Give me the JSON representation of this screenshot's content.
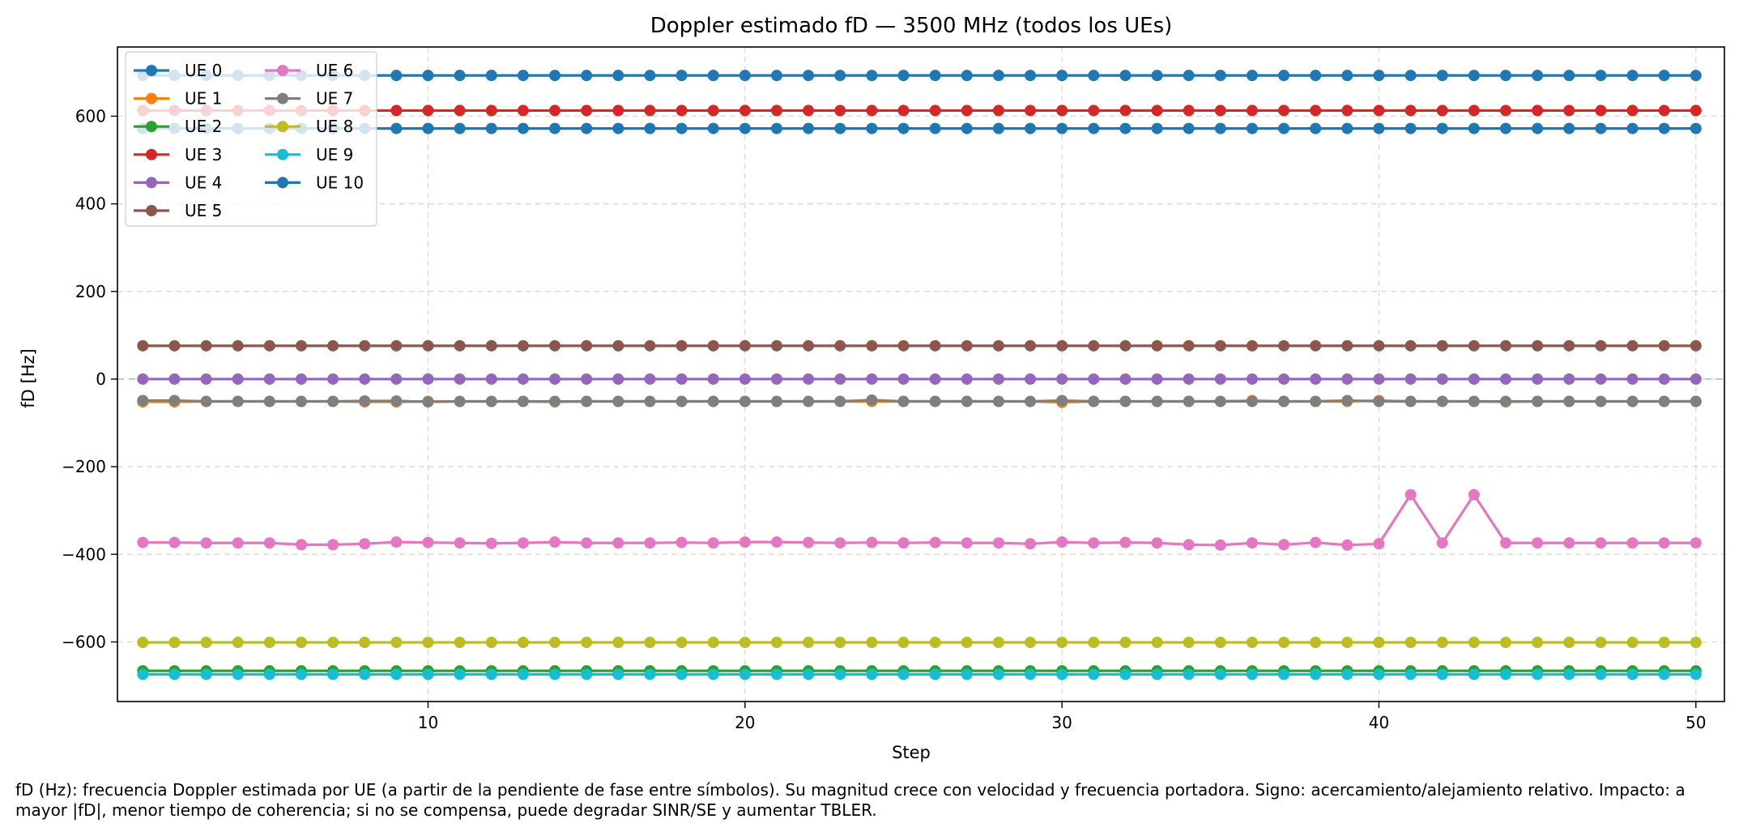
{
  "chart_data": {
    "type": "line",
    "title": "Doppler estimado fD — 3500 MHz (todos los UEs)",
    "xlabel": "Step",
    "ylabel": "fD [Hz]",
    "xlim": [
      0.2,
      50.9
    ],
    "ylim": [
      -736,
      758
    ],
    "xticks": [
      10,
      20,
      30,
      40,
      50
    ],
    "yticks": [
      -600,
      -400,
      -200,
      0,
      200,
      400,
      600
    ],
    "ytick_labels": [
      "−600",
      "−400",
      "−200",
      "0",
      "200",
      "400",
      "600"
    ],
    "grid": true,
    "legend_position": "top-left",
    "zero_reference_line": {
      "y": 0,
      "style": "dashed",
      "color": "#8ab6d6"
    },
    "x": [
      1,
      2,
      3,
      4,
      5,
      6,
      7,
      8,
      9,
      10,
      11,
      12,
      13,
      14,
      15,
      16,
      17,
      18,
      19,
      20,
      21,
      22,
      23,
      24,
      25,
      26,
      27,
      28,
      29,
      30,
      31,
      32,
      33,
      34,
      35,
      36,
      37,
      38,
      39,
      40,
      41,
      42,
      43,
      44,
      45,
      46,
      47,
      48,
      49,
      50
    ],
    "series": [
      {
        "name": "UE 0",
        "color": "#1f77b4",
        "values": [
          572,
          572,
          572,
          572,
          572,
          572,
          572,
          572,
          572,
          572,
          572,
          572,
          572,
          572,
          572,
          572,
          572,
          572,
          572,
          572,
          572,
          572,
          572,
          572,
          572,
          572,
          572,
          572,
          572,
          572,
          572,
          572,
          572,
          572,
          572,
          572,
          572,
          572,
          572,
          572,
          572,
          572,
          572,
          572,
          572,
          572,
          572,
          572,
          572,
          572
        ]
      },
      {
        "name": "UE 1",
        "color": "#ff7f0e",
        "values": [
          -52,
          -52,
          -51,
          -51,
          -51,
          -51,
          -51,
          -52,
          -52,
          -51,
          -51,
          -51,
          -51,
          -52,
          -51,
          -51,
          -51,
          -51,
          -51,
          -51,
          -51,
          -51,
          -51,
          -51,
          -51,
          -51,
          -51,
          -51,
          -51,
          -53,
          -51,
          -51,
          -51,
          -51,
          -51,
          -49,
          -51,
          -51,
          -51,
          -49,
          -51,
          -51,
          -51,
          -52,
          -51,
          -51,
          -51,
          -51,
          -51,
          -51
        ]
      },
      {
        "name": "UE 2",
        "color": "#2ca02c",
        "values": [
          -666,
          -666,
          -666,
          -666,
          -666,
          -666,
          -666,
          -666,
          -666,
          -666,
          -666,
          -666,
          -666,
          -666,
          -666,
          -666,
          -666,
          -666,
          -666,
          -666,
          -666,
          -666,
          -666,
          -666,
          -666,
          -666,
          -666,
          -666,
          -666,
          -666,
          -666,
          -666,
          -666,
          -666,
          -666,
          -666,
          -666,
          -666,
          -666,
          -666,
          -666,
          -666,
          -666,
          -666,
          -666,
          -666,
          -666,
          -666,
          -666,
          -666
        ]
      },
      {
        "name": "UE 3",
        "color": "#d62728",
        "values": [
          613,
          613,
          613,
          613,
          613,
          613,
          613,
          613,
          613,
          613,
          613,
          613,
          613,
          613,
          613,
          613,
          613,
          613,
          613,
          613,
          613,
          613,
          613,
          613,
          613,
          613,
          613,
          613,
          613,
          613,
          613,
          613,
          613,
          613,
          613,
          613,
          613,
          613,
          613,
          613,
          613,
          613,
          613,
          613,
          613,
          613,
          613,
          613,
          613,
          613
        ]
      },
      {
        "name": "UE 4",
        "color": "#9467bd",
        "values": [
          0,
          0,
          0,
          0,
          0,
          0,
          0,
          0,
          0,
          0,
          0,
          0,
          0,
          0,
          0,
          0,
          0,
          0,
          0,
          0,
          0,
          0,
          0,
          0,
          0,
          0,
          0,
          0,
          0,
          0,
          0,
          0,
          0,
          0,
          0,
          0,
          0,
          0,
          0,
          0,
          0,
          0,
          0,
          0,
          0,
          0,
          0,
          0,
          0,
          0
        ]
      },
      {
        "name": "UE 5",
        "color": "#8c564b",
        "values": [
          76,
          76,
          76,
          76,
          76,
          76,
          76,
          76,
          76,
          76,
          76,
          76,
          76,
          76,
          76,
          76,
          76,
          76,
          76,
          76,
          76,
          76,
          76,
          76,
          76,
          76,
          76,
          76,
          76,
          76,
          76,
          76,
          76,
          76,
          76,
          76,
          76,
          76,
          76,
          76,
          76,
          76,
          76,
          76,
          76,
          76,
          76,
          76,
          76,
          76
        ]
      },
      {
        "name": "UE 6",
        "color": "#e377c2",
        "values": [
          -373,
          -373,
          -374,
          -374,
          -374,
          -378,
          -378,
          -376,
          -372,
          -373,
          -374,
          -375,
          -374,
          -372,
          -374,
          -374,
          -374,
          -373,
          -374,
          -372,
          -372,
          -373,
          -374,
          -373,
          -374,
          -373,
          -374,
          -374,
          -376,
          -372,
          -374,
          -373,
          -374,
          -378,
          -379,
          -374,
          -378,
          -373,
          -379,
          -376,
          -264,
          -374,
          -264,
          -374,
          -374,
          -374,
          -374,
          -374,
          -374,
          -374
        ]
      },
      {
        "name": "UE 7",
        "color": "#7f7f7f",
        "values": [
          -49,
          -49,
          -51,
          -51,
          -51,
          -51,
          -51,
          -50,
          -50,
          -52,
          -51,
          -51,
          -51,
          -51,
          -51,
          -51,
          -51,
          -51,
          -51,
          -51,
          -51,
          -51,
          -51,
          -48,
          -51,
          -51,
          -51,
          -51,
          -51,
          -49,
          -51,
          -51,
          -51,
          -51,
          -51,
          -51,
          -51,
          -51,
          -49,
          -51,
          -51,
          -51,
          -51,
          -51,
          -51,
          -51,
          -51,
          -51,
          -51,
          -51
        ]
      },
      {
        "name": "UE 8",
        "color": "#bcbd22",
        "values": [
          -601,
          -601,
          -601,
          -601,
          -601,
          -601,
          -601,
          -601,
          -601,
          -601,
          -601,
          -601,
          -601,
          -601,
          -601,
          -601,
          -601,
          -601,
          -601,
          -601,
          -601,
          -601,
          -601,
          -601,
          -601,
          -601,
          -601,
          -601,
          -601,
          -601,
          -601,
          -601,
          -601,
          -601,
          -601,
          -601,
          -601,
          -601,
          -601,
          -601,
          -601,
          -601,
          -601,
          -601,
          -601,
          -601,
          -601,
          -601,
          -601,
          -601
        ]
      },
      {
        "name": "UE 9",
        "color": "#17becf",
        "values": [
          -674,
          -674,
          -674,
          -674,
          -674,
          -674,
          -674,
          -674,
          -674,
          -674,
          -674,
          -674,
          -674,
          -674,
          -674,
          -674,
          -674,
          -674,
          -674,
          -674,
          -674,
          -674,
          -674,
          -674,
          -674,
          -674,
          -674,
          -674,
          -674,
          -674,
          -674,
          -674,
          -674,
          -674,
          -674,
          -674,
          -674,
          -674,
          -674,
          -674,
          -674,
          -674,
          -674,
          -674,
          -674,
          -674,
          -674,
          -674,
          -674,
          -674
        ]
      },
      {
        "name": "UE 10",
        "color": "#1f77b4",
        "values": [
          693,
          693,
          693,
          693,
          693,
          693,
          693,
          693,
          693,
          693,
          693,
          693,
          693,
          693,
          693,
          693,
          693,
          693,
          693,
          693,
          693,
          693,
          693,
          693,
          693,
          693,
          693,
          693,
          693,
          693,
          693,
          693,
          693,
          693,
          693,
          693,
          693,
          693,
          693,
          693,
          693,
          693,
          693,
          693,
          693,
          693,
          693,
          693,
          693,
          693
        ]
      }
    ]
  },
  "caption": "fD (Hz): frecuencia Doppler estimada por UE (a partir de la pendiente de fase entre símbolos). Su magnitud crece con velocidad y frecuencia portadora. Signo: acercamiento/alejamiento relativo. Impacto: a mayor |fD|, menor tiempo de coherencia; si no se compensa, puede degradar SINR/SE y aumentar TBLER."
}
